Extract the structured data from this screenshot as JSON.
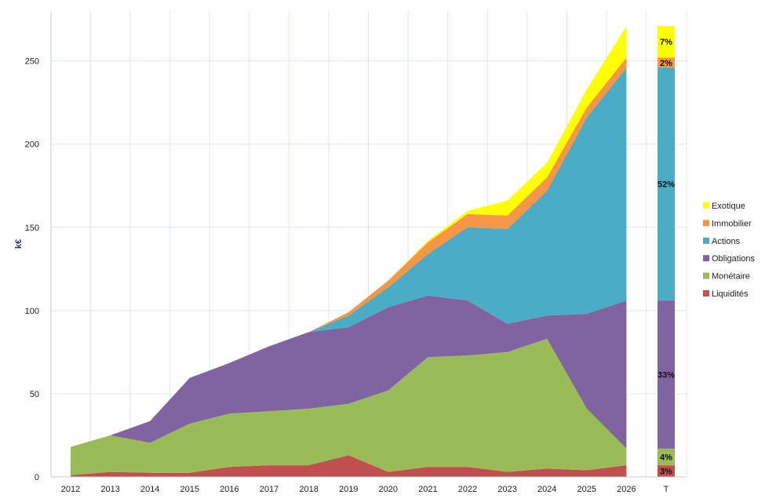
{
  "chart_data": {
    "type": "area",
    "stacked": true,
    "ylabel": "k€",
    "ylim": [
      0,
      280
    ],
    "yticks": [
      0,
      50,
      100,
      150,
      200,
      250
    ],
    "categories": [
      "2012",
      "2013",
      "2014",
      "2015",
      "2016",
      "2017",
      "2018",
      "2019",
      "2020",
      "2021",
      "2022",
      "2023",
      "2024",
      "2025",
      "2026"
    ],
    "series": [
      {
        "key": "liquidites",
        "name": "Liquidités",
        "color": "#c0504d",
        "values": [
          1,
          3,
          2.5,
          2.5,
          6,
          7,
          7,
          13,
          3,
          6,
          6,
          3,
          5,
          4,
          7
        ]
      },
      {
        "key": "monetaire",
        "name": "Monétaire",
        "color": "#9bbb59",
        "values": [
          17,
          22,
          18,
          29.5,
          32,
          32.5,
          34,
          31,
          49,
          66,
          67,
          72,
          78,
          37,
          10
        ]
      },
      {
        "key": "obligations",
        "name": "Obligations",
        "color": "#8064a2",
        "values": [
          0,
          0,
          13,
          27.5,
          30.5,
          39,
          46,
          46,
          50,
          37,
          33,
          17,
          14,
          57,
          89
        ]
      },
      {
        "key": "actions",
        "name": "Actions",
        "color": "#4bacc6",
        "values": [
          0,
          0,
          0,
          0,
          0,
          0,
          0,
          7,
          12,
          25,
          44,
          57,
          75,
          118,
          140
        ]
      },
      {
        "key": "immobilier",
        "name": "Immobilier",
        "color": "#f79646",
        "values": [
          0,
          0,
          0,
          0,
          0,
          0,
          0,
          2,
          4,
          7,
          8,
          8,
          8,
          6,
          6
        ]
      },
      {
        "key": "exotique",
        "name": "Exotique",
        "color": "#ffff00",
        "values": [
          0,
          0,
          0,
          0,
          0,
          0,
          0,
          0,
          0,
          1,
          2,
          9,
          9,
          11,
          19
        ]
      }
    ],
    "total_bar": {
      "label": "T",
      "values": [
        7,
        10,
        89,
        140,
        6,
        19
      ],
      "percent_labels": [
        "3%",
        "4%",
        "33%",
        "52%",
        "2%",
        "7%"
      ]
    },
    "legend_order": [
      "exotique",
      "immobilier",
      "actions",
      "obligations",
      "monetaire",
      "liquidites"
    ],
    "legend_position": "right"
  }
}
